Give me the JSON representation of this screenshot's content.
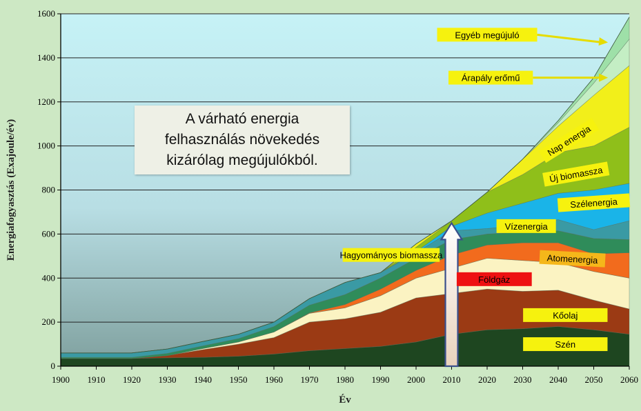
{
  "chart_data": {
    "type": "area",
    "stacked": true,
    "xlabel": "Év",
    "ylabel": "Energiafogyasztás (Exajoule/év)",
    "xlim": [
      1900,
      2060
    ],
    "ylim": [
      0,
      1600
    ],
    "x_ticks": [
      1900,
      1910,
      1920,
      1930,
      1940,
      1950,
      1960,
      1970,
      1980,
      1990,
      2000,
      2010,
      2020,
      2030,
      2040,
      2050,
      2060
    ],
    "y_ticks": [
      0,
      200,
      400,
      600,
      800,
      1000,
      1200,
      1400,
      1600
    ],
    "grid": "horizontal",
    "x": [
      1900,
      1910,
      1920,
      1930,
      1940,
      1950,
      1960,
      1970,
      1980,
      1990,
      2000,
      2010,
      2020,
      2030,
      2040,
      2050,
      2060
    ],
    "series": [
      {
        "name": "Szén",
        "color": "#1e4620",
        "values": [
          35,
          35,
          35,
          38,
          40,
          45,
          55,
          70,
          80,
          90,
          110,
          145,
          165,
          170,
          180,
          165,
          145
        ]
      },
      {
        "name": "Kőolaj",
        "color": "#9b3a14",
        "values": [
          0,
          0,
          0,
          10,
          35,
          55,
          75,
          130,
          135,
          155,
          200,
          185,
          185,
          170,
          165,
          135,
          115
        ]
      },
      {
        "name": "Földgáz",
        "color": "#fbf3c2",
        "values": [
          0,
          0,
          0,
          0,
          5,
          10,
          25,
          40,
          50,
          75,
          90,
          115,
          140,
          140,
          125,
          130,
          140
        ]
      },
      {
        "name": "Atomenergia",
        "color": "#f26b1d",
        "values": [
          0,
          0,
          0,
          0,
          0,
          0,
          0,
          2,
          15,
          30,
          35,
          60,
          60,
          80,
          90,
          80,
          115
        ]
      },
      {
        "name": "Vízenergia",
        "color": "#2f8c5a",
        "values": [
          5,
          5,
          5,
          10,
          12,
          15,
          25,
          35,
          45,
          50,
          55,
          70,
          50,
          50,
          55,
          70,
          60
        ]
      },
      {
        "name": "Hagyományos biomassza",
        "color": "#3a9aa4",
        "values": [
          20,
          20,
          20,
          20,
          20,
          20,
          20,
          30,
          55,
          25,
          25,
          40,
          25,
          30,
          50,
          40,
          85
        ]
      },
      {
        "name": "Szélenergia",
        "color": "#1ab4e8",
        "values": [
          0,
          0,
          0,
          0,
          0,
          0,
          0,
          0,
          0,
          0,
          5,
          20,
          70,
          100,
          120,
          180,
          170
        ]
      },
      {
        "name": "Új biomassza",
        "color": "#8fbf1a",
        "values": [
          0,
          0,
          0,
          0,
          0,
          0,
          0,
          0,
          0,
          0,
          20,
          25,
          95,
          130,
          185,
          200,
          255
        ]
      },
      {
        "name": "Nap energia",
        "color": "#f2ef1a",
        "values": [
          0,
          0,
          0,
          0,
          0,
          0,
          0,
          0,
          0,
          0,
          15,
          0,
          0,
          70,
          120,
          230,
          280
        ]
      },
      {
        "name": "Árapály erőmű",
        "color": "#c4eec4",
        "values": [
          0,
          0,
          0,
          0,
          0,
          0,
          0,
          0,
          0,
          0,
          0,
          0,
          0,
          0,
          15,
          55,
          120
        ]
      },
      {
        "name": "Egyéb megújuló",
        "color": "#9ee0a8",
        "values": [
          0,
          0,
          0,
          0,
          0,
          0,
          0,
          0,
          0,
          0,
          0,
          0,
          0,
          0,
          10,
          25,
          100
        ]
      }
    ],
    "series_labels": [
      {
        "series": "Szén",
        "text": "Szén",
        "bg": "#f6f20e",
        "x": 2042,
        "y": 100,
        "rot": 0,
        "w": 54
      },
      {
        "series": "Kőolaj",
        "text": "Kőolaj",
        "bg": "#f6f20e",
        "x": 2042,
        "y": 232,
        "rot": 0,
        "w": 54
      },
      {
        "series": "Földgáz",
        "text": "Földgáz",
        "bg": "#ee1111",
        "x": 2022,
        "y": 395,
        "rot": 0,
        "w": 48
      },
      {
        "series": "Atomenergia",
        "text": "Atomenergia",
        "bg": "#f5b71a",
        "x": 2044,
        "y": 488,
        "rot": 3,
        "w": 42
      },
      {
        "series": "Vízenergia",
        "text": "Vízenergia",
        "bg": "#f6f20e",
        "x": 2031,
        "y": 636,
        "rot": 0,
        "w": 38
      },
      {
        "series": "Hagyományos biomassza",
        "text": "Hagyományos biomassza",
        "bg": "#f6f20e",
        "x": 1993,
        "y": 505,
        "rot": 0,
        "w": 62
      },
      {
        "series": "Szélenergia",
        "text": "Szélenergia",
        "bg": "#f6f20e",
        "x": 2050,
        "y": 742,
        "rot": -4,
        "w": 46
      },
      {
        "series": "Új biomassza",
        "text": "Új biomassza",
        "bg": "#f6f20e",
        "x": 2045,
        "y": 872,
        "rot": -10,
        "w": 42
      },
      {
        "series": "Nap energia",
        "text": "Nap energia",
        "bg": "#f6f20e",
        "x": 2043,
        "y": 1025,
        "rot": -32,
        "w": 40
      },
      {
        "series": "Árapály erőmű",
        "text": "Árapály  erőmű",
        "bg": "#f6f20e",
        "x": 2021,
        "y": 1310,
        "rot": 0,
        "w": 54,
        "arrow_to": [
          2054,
          1310
        ]
      },
      {
        "series": "Egyéb megújuló",
        "text": "Egyéb megújuló",
        "bg": "#f6f20e",
        "x": 2020,
        "y": 1505,
        "rot": 0,
        "w": 64,
        "arrow_to": [
          2054,
          1470
        ]
      }
    ],
    "annotation": {
      "text_lines": [
        "A várható energia",
        "felhasználás növekedés",
        "kizárólag megújulókból."
      ],
      "arrow": {
        "x": 2010,
        "y_from": 0,
        "y_to": 650
      }
    }
  }
}
